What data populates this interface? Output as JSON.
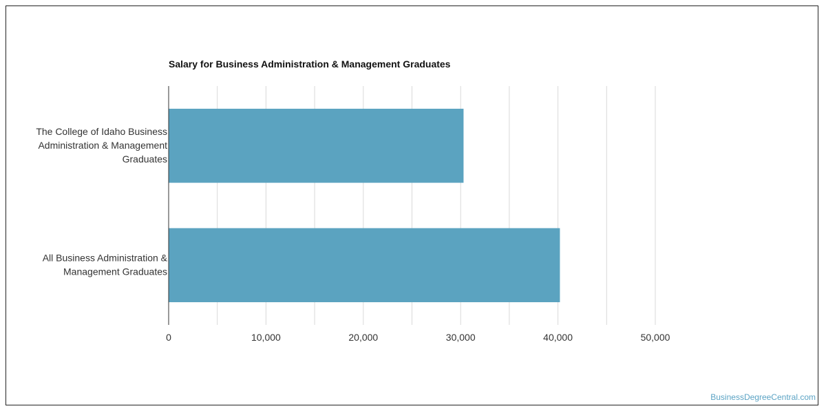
{
  "chart_data": {
    "type": "bar",
    "orientation": "horizontal",
    "title": "Salary for Business Administration & Management Graduates",
    "categories": [
      [
        "The College of Idaho Business",
        "Administration & Management",
        "Graduates"
      ],
      [
        "All Business Administration &",
        "Management Graduates"
      ]
    ],
    "values": [
      30300,
      40200
    ],
    "xlim": [
      0,
      50000
    ],
    "x_ticks": [
      "0",
      "10,000",
      "20,000",
      "30,000",
      "40,000",
      "50,000"
    ],
    "grid": true,
    "bar_color": "#5ba3c0",
    "xlabel": "",
    "ylabel": ""
  },
  "watermark": "BusinessDegreeCentral.com",
  "colors": {
    "grid": "#d9d9d9",
    "axis": "#333333",
    "text": "#333333",
    "watermark": "#5ba3c4"
  }
}
